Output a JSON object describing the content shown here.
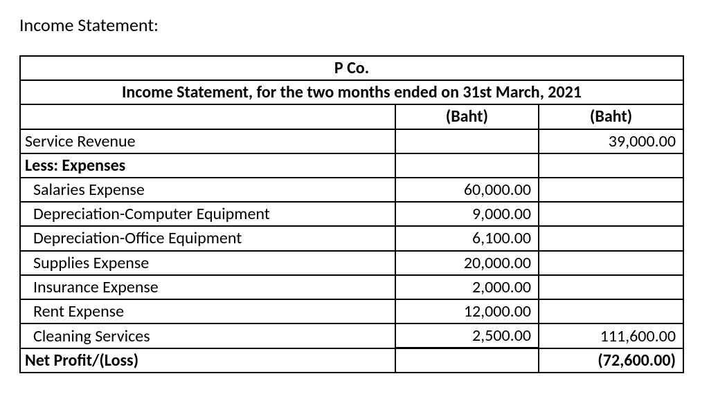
{
  "title": "Income Statement:",
  "table": {
    "company": "P Co.",
    "subtitle": "Income Statement, for the two months ended on 31st March, 2021",
    "col_header_1": "(Baht)",
    "col_header_2": "(Baht)",
    "rows": [
      {
        "label": "Service Revenue",
        "amt1": "",
        "amt2": "39,000.00",
        "bold": false,
        "indent": false
      },
      {
        "label": "Less: Expenses",
        "amt1": "",
        "amt2": "",
        "bold": true,
        "indent": false
      },
      {
        "label": "Salaries Expense",
        "amt1": "60,000.00",
        "amt2": "",
        "bold": false,
        "indent": true
      },
      {
        "label": "Depreciation-Computer Equipment",
        "amt1": "9,000.00",
        "amt2": "",
        "bold": false,
        "indent": true
      },
      {
        "label": "Depreciation-Office Equipment",
        "amt1": "6,100.00",
        "amt2": "",
        "bold": false,
        "indent": true
      },
      {
        "label": "Supplies Expense",
        "amt1": "20,000.00",
        "amt2": "",
        "bold": false,
        "indent": true
      },
      {
        "label": "Insurance Expense",
        "amt1": "2,000.00",
        "amt2": "",
        "bold": false,
        "indent": true
      },
      {
        "label": "Rent Expense",
        "amt1": "12,000.00",
        "amt2": "",
        "bold": false,
        "indent": true
      },
      {
        "label": "Cleaning Services",
        "amt1": "2,500.00",
        "amt2": "111,600.00",
        "bold": false,
        "indent": true,
        "underline_amt1": true
      },
      {
        "label": "Net Profit/(Loss)",
        "amt1": "",
        "amt2": "(72,600.00)",
        "bold": true,
        "indent": false
      }
    ]
  },
  "style": {
    "font_family": "Calibri",
    "title_fontsize": 26,
    "table_fontsize": 24,
    "border_color": "#000000",
    "background_color": "#ffffff",
    "text_color": "#000000"
  }
}
